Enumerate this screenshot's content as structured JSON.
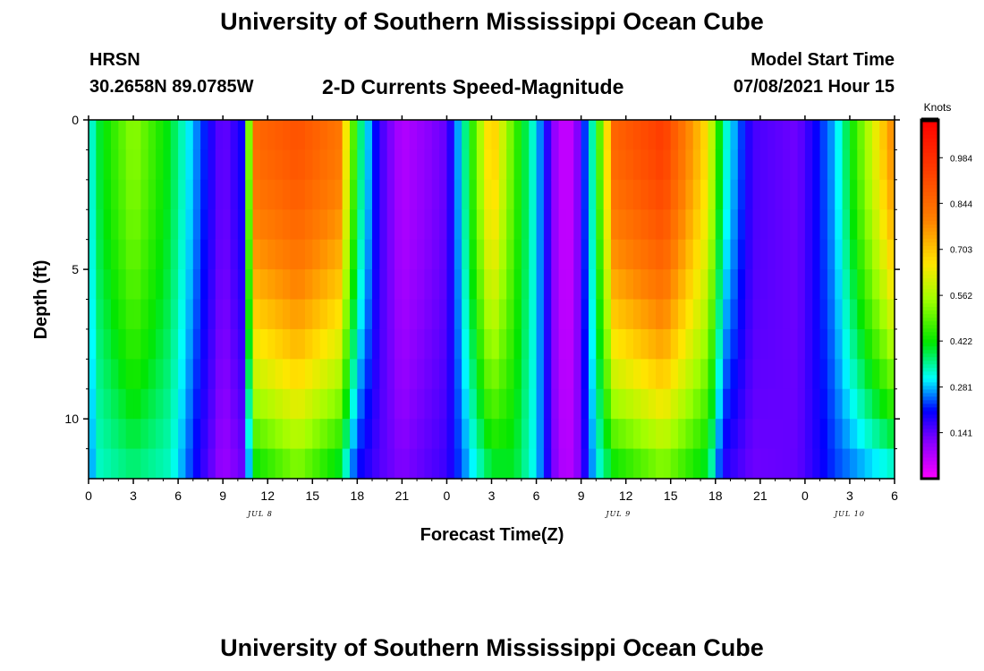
{
  "header": {
    "title": "University of Southern Mississippi Ocean Cube",
    "station": "HRSN",
    "coordinates": "30.2658N  89.0785W",
    "subtitle": "2-D Currents Speed-Magnitude",
    "model_start_label": "Model Start Time",
    "model_start_value": "07/08/2021 Hour 15"
  },
  "footer": {
    "title": "University of Southern Mississippi Ocean Cube"
  },
  "chart_data": {
    "type": "heatmap",
    "xlabel": "Forecast Time(Z)",
    "ylabel": "Depth (ft)",
    "x_range_hours": [
      0,
      54
    ],
    "x_tick_labels": [
      "0",
      "3",
      "6",
      "9",
      "12",
      "15",
      "18",
      "21",
      "0",
      "3",
      "6",
      "9",
      "12",
      "15",
      "18",
      "21",
      "0",
      "3",
      "6"
    ],
    "date_labels": [
      {
        "text": "JUL 8",
        "hour": 11.5
      },
      {
        "text": "JUL 9",
        "hour": 35.5
      },
      {
        "text": "JUL 10",
        "hour": 51
      }
    ],
    "y_range_ft": [
      0,
      12
    ],
    "y_tick_labels": [
      "0",
      "5",
      "10"
    ],
    "y_tick_values": [
      0,
      5,
      10
    ],
    "colorbar": {
      "title": "Knots",
      "range": [
        0,
        1.1
      ],
      "tick_labels": [
        "0.141",
        "0.281",
        "0.422",
        "0.562",
        "0.703",
        "0.844",
        "0.984"
      ],
      "tick_values": [
        0.141,
        0.281,
        0.422,
        0.562,
        0.703,
        0.844,
        0.984
      ]
    },
    "speed_keyframes": {
      "hours": [
        0,
        0.75,
        3,
        5.5,
        7.5,
        9,
        10.25,
        11.25,
        14,
        16.75,
        18,
        19.5,
        21,
        24,
        25.25,
        27,
        28.5,
        30,
        31.5,
        32.5,
        34,
        35.25,
        38.5,
        41.5,
        42.5,
        44.5,
        47.5,
        50,
        54
      ],
      "surface_knots": [
        0.3,
        0.4,
        0.54,
        0.4,
        0.24,
        0.13,
        0.2,
        0.85,
        0.9,
        0.82,
        0.4,
        0.17,
        0.07,
        0.14,
        0.36,
        0.72,
        0.48,
        0.3,
        0.06,
        0.06,
        0.4,
        0.86,
        0.95,
        0.66,
        0.35,
        0.16,
        0.13,
        0.28,
        0.8
      ],
      "bottom_knots": [
        0.25,
        0.33,
        0.36,
        0.33,
        0.18,
        0.09,
        0.13,
        0.4,
        0.5,
        0.38,
        0.2,
        0.15,
        0.12,
        0.17,
        0.26,
        0.38,
        0.4,
        0.3,
        0.08,
        0.07,
        0.3,
        0.4,
        0.5,
        0.38,
        0.18,
        0.13,
        0.14,
        0.23,
        0.3
      ],
      "depth_profile_exponent": 1.7
    }
  }
}
